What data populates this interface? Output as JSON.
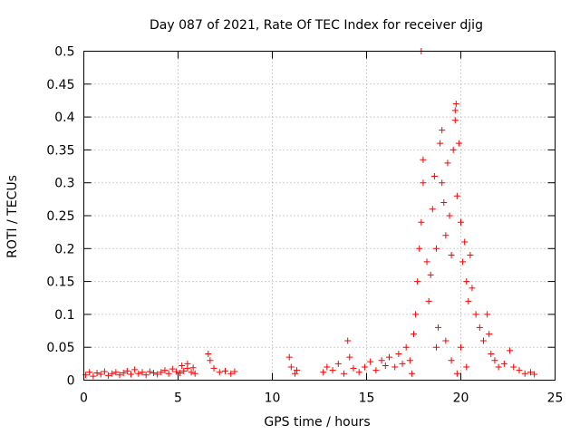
{
  "chart_data": {
    "type": "scatter",
    "title": "Day 087 of 2021, Rate Of TEC Index for receiver djig",
    "xlabel": "GPS time / hours",
    "ylabel": "ROTI / TECUs",
    "xlim": [
      0,
      25
    ],
    "ylim": [
      0,
      0.5
    ],
    "xticks": [
      0,
      5,
      10,
      15,
      20,
      25
    ],
    "xtick_labels": [
      "0",
      "5",
      "10",
      "15",
      "20",
      "25"
    ],
    "yticks": [
      0,
      0.05,
      0.1,
      0.15,
      0.2,
      0.25,
      0.3,
      0.35,
      0.4,
      0.45,
      0.5
    ],
    "ytick_labels": [
      "0",
      "0.05",
      "0.1",
      "0.15",
      "0.2",
      "0.25",
      "0.3",
      "0.35",
      "0.4",
      "0.45",
      "0.5"
    ],
    "grid": true,
    "marker": "+",
    "color": "#ff0000",
    "series": [
      {
        "name": "ROTI",
        "points": [
          [
            0.1,
            0.008
          ],
          [
            0.3,
            0.012
          ],
          [
            0.5,
            0.006
          ],
          [
            0.7,
            0.011
          ],
          [
            0.9,
            0.009
          ],
          [
            1.1,
            0.013
          ],
          [
            1.3,
            0.007
          ],
          [
            1.5,
            0.01
          ],
          [
            1.7,
            0.012
          ],
          [
            1.9,
            0.008
          ],
          [
            2.1,
            0.011
          ],
          [
            2.3,
            0.014
          ],
          [
            2.5,
            0.009
          ],
          [
            2.7,
            0.016
          ],
          [
            2.9,
            0.01
          ],
          [
            3.1,
            0.012
          ],
          [
            3.3,
            0.008
          ],
          [
            3.5,
            0.013
          ],
          [
            3.7,
            0.011
          ],
          [
            3.9,
            0.009
          ],
          [
            4.1,
            0.012
          ],
          [
            4.3,
            0.015
          ],
          [
            4.5,
            0.01
          ],
          [
            4.7,
            0.017
          ],
          [
            4.9,
            0.013
          ],
          [
            5.1,
            0.011
          ],
          [
            5.3,
            0.014
          ],
          [
            5.5,
            0.018
          ],
          [
            5.7,
            0.012
          ],
          [
            5.9,
            0.01
          ],
          [
            5.2,
            0.022
          ],
          [
            5.5,
            0.025
          ],
          [
            5.8,
            0.019
          ],
          [
            6.6,
            0.04
          ],
          [
            6.7,
            0.03
          ],
          [
            6.9,
            0.018
          ],
          [
            7.2,
            0.012
          ],
          [
            7.5,
            0.014
          ],
          [
            7.8,
            0.01
          ],
          [
            8.0,
            0.013
          ],
          [
            10.9,
            0.035
          ],
          [
            11.0,
            0.02
          ],
          [
            11.2,
            0.01
          ],
          [
            11.3,
            0.015
          ],
          [
            12.7,
            0.012
          ],
          [
            12.9,
            0.02
          ],
          [
            13.2,
            0.015
          ],
          [
            13.5,
            0.025
          ],
          [
            13.8,
            0.01
          ],
          [
            14.0,
            0.06
          ],
          [
            14.1,
            0.035
          ],
          [
            14.3,
            0.018
          ],
          [
            14.6,
            0.012
          ],
          [
            14.9,
            0.02
          ],
          [
            15.2,
            0.028
          ],
          [
            15.5,
            0.015
          ],
          [
            15.8,
            0.03
          ],
          [
            16.0,
            0.022
          ],
          [
            16.2,
            0.035
          ],
          [
            16.5,
            0.02
          ],
          [
            16.7,
            0.04
          ],
          [
            16.9,
            0.025
          ],
          [
            17.1,
            0.05
          ],
          [
            17.3,
            0.03
          ],
          [
            17.5,
            0.07
          ],
          [
            17.6,
            0.1
          ],
          [
            17.7,
            0.15
          ],
          [
            17.8,
            0.2
          ],
          [
            17.9,
            0.24
          ],
          [
            18.0,
            0.3
          ],
          [
            18.0,
            0.335
          ],
          [
            17.9,
            0.5
          ],
          [
            18.2,
            0.18
          ],
          [
            18.3,
            0.12
          ],
          [
            18.4,
            0.16
          ],
          [
            18.5,
            0.26
          ],
          [
            18.6,
            0.31
          ],
          [
            18.7,
            0.2
          ],
          [
            18.8,
            0.08
          ],
          [
            18.9,
            0.36
          ],
          [
            19.0,
            0.38
          ],
          [
            19.0,
            0.3
          ],
          [
            19.1,
            0.27
          ],
          [
            19.2,
            0.22
          ],
          [
            19.3,
            0.33
          ],
          [
            19.4,
            0.25
          ],
          [
            19.5,
            0.19
          ],
          [
            19.6,
            0.35
          ],
          [
            19.7,
            0.41
          ],
          [
            19.7,
            0.395
          ],
          [
            19.75,
            0.42
          ],
          [
            19.8,
            0.28
          ],
          [
            19.9,
            0.36
          ],
          [
            20.0,
            0.24
          ],
          [
            20.1,
            0.18
          ],
          [
            20.2,
            0.21
          ],
          [
            20.3,
            0.15
          ],
          [
            20.4,
            0.12
          ],
          [
            20.5,
            0.19
          ],
          [
            20.6,
            0.14
          ],
          [
            20.8,
            0.1
          ],
          [
            21.0,
            0.08
          ],
          [
            21.2,
            0.06
          ],
          [
            21.4,
            0.1
          ],
          [
            21.5,
            0.07
          ],
          [
            21.6,
            0.04
          ],
          [
            21.8,
            0.03
          ],
          [
            22.0,
            0.02
          ],
          [
            22.3,
            0.025
          ],
          [
            22.6,
            0.045
          ],
          [
            22.8,
            0.02
          ],
          [
            23.1,
            0.015
          ],
          [
            23.4,
            0.01
          ],
          [
            23.7,
            0.012
          ],
          [
            23.9,
            0.009
          ],
          [
            18.7,
            0.05
          ],
          [
            19.2,
            0.06
          ],
          [
            19.5,
            0.03
          ],
          [
            20.0,
            0.05
          ],
          [
            20.3,
            0.02
          ],
          [
            17.4,
            0.01
          ],
          [
            19.8,
            0.01
          ]
        ]
      }
    ]
  }
}
